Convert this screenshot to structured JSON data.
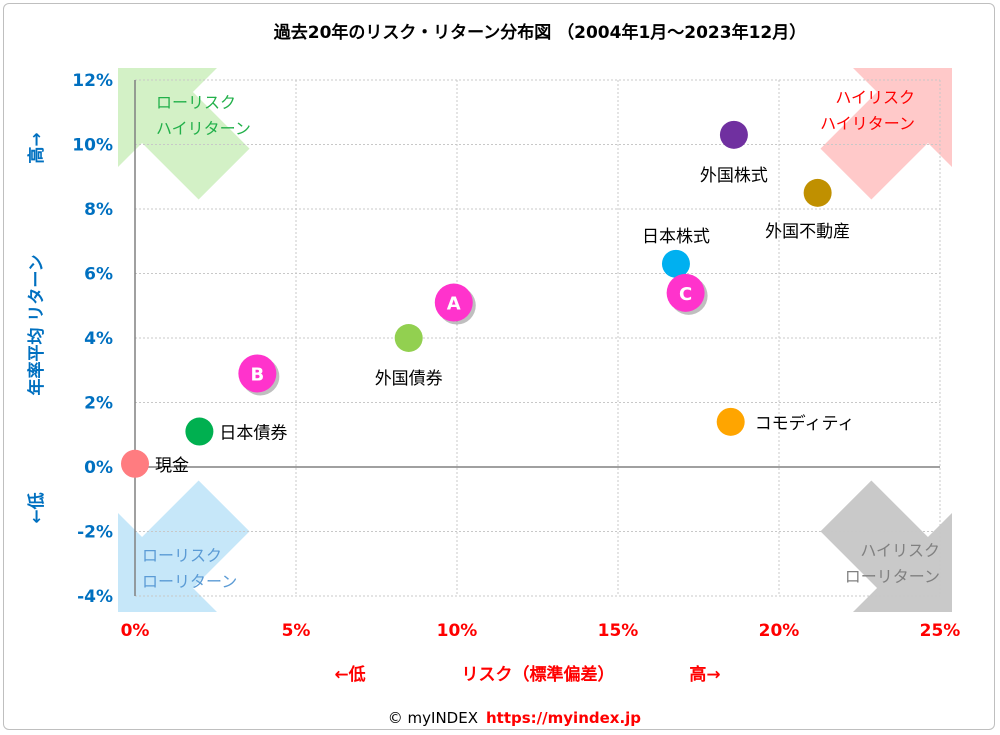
{
  "chart_data": {
    "type": "scatter",
    "title": "過去20年のリスク・リターン分布図 （2004年1月～2023年12月）",
    "xlabel": "リスク（標準偏差）",
    "xlabel_low": "←低",
    "xlabel_high": "高→",
    "ylabel": "年率平均 リターン",
    "ylabel_high": "高→",
    "ylabel_low": "←低",
    "xlim": [
      0,
      25
    ],
    "ylim": [
      -4,
      12
    ],
    "x_ticks": [
      0,
      5,
      10,
      15,
      20,
      25
    ],
    "x_tick_labels": [
      "0%",
      "5%",
      "10%",
      "15%",
      "20%",
      "25%"
    ],
    "y_ticks": [
      12,
      10,
      8,
      6,
      4,
      2,
      0,
      -2,
      -4
    ],
    "y_tick_labels": [
      "12%",
      "10%",
      "8%",
      "6%",
      "4%",
      "2%",
      "0%",
      "-2%",
      "-4%"
    ],
    "grid": true,
    "points": [
      {
        "label": "現金",
        "x": 0.0,
        "y": 0.1,
        "color": "#ff7c80"
      },
      {
        "label": "日本債券",
        "x": 2.0,
        "y": 1.1,
        "color": "#00b050"
      },
      {
        "label": "B",
        "x": 3.8,
        "y": 2.9,
        "color": "#ff33cc",
        "badge": true
      },
      {
        "label": "外国債券",
        "x": 8.5,
        "y": 4.0,
        "color": "#92d050"
      },
      {
        "label": "A",
        "x": 9.9,
        "y": 5.1,
        "color": "#ff33cc",
        "badge": true
      },
      {
        "label": "日本株式",
        "x": 16.8,
        "y": 6.3,
        "color": "#00b0f0"
      },
      {
        "label": "C",
        "x": 17.1,
        "y": 5.4,
        "color": "#ff33cc",
        "badge": true
      },
      {
        "label": "外国株式",
        "x": 18.6,
        "y": 10.3,
        "color": "#7030a0"
      },
      {
        "label": "外国不動産",
        "x": 21.2,
        "y": 8.5,
        "color": "#c09000"
      },
      {
        "label": "コモディティ",
        "x": 18.5,
        "y": 1.4,
        "color": "#ffa500"
      }
    ],
    "quadrants": [
      {
        "id": "top-left",
        "lines": [
          "ローリスク",
          "ハイリターン"
        ],
        "color": "#22b04a",
        "fill": "#d3f1c6"
      },
      {
        "id": "top-right",
        "lines": [
          "ハイリスク",
          "ハイリターン"
        ],
        "color": "#ff0000",
        "fill": "#ffc9c9"
      },
      {
        "id": "bottom-left",
        "lines": [
          "ローリスク",
          "ローリターン"
        ],
        "color": "#5b9bd5",
        "fill": "#c6e7f9"
      },
      {
        "id": "bottom-right",
        "lines": [
          "ハイリスク",
          "ローリターン"
        ],
        "color": "#808080",
        "fill": "#c9c9c9"
      }
    ]
  },
  "footer": {
    "copyright": "© myINDEX",
    "url": "https://myindex.jp"
  },
  "colors": {
    "y_axis": "#0070c0",
    "x_axis": "#ff0000"
  }
}
